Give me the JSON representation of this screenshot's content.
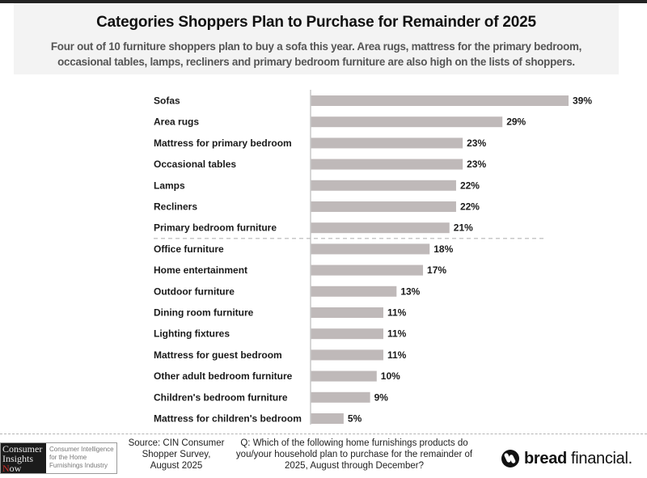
{
  "header": {
    "title": "Categories Shoppers Plan to Purchase for Remainder of 2025",
    "subtitle_line1": "Four out of 10 furniture shoppers plan to buy a sofa this year. Area rugs, mattress for the primary bedroom,",
    "subtitle_line2": "occasional tables, lamps, recliners and primary bedroom furniture are also high on the lists of shoppers."
  },
  "chart_data": {
    "type": "bar",
    "orientation": "horizontal",
    "title": "Categories Shoppers Plan to Purchase for Remainder of 2025",
    "xlabel": "",
    "ylabel": "",
    "unit": "%",
    "xlim": [
      0,
      39
    ],
    "grid": false,
    "legend": "none",
    "bar_color": "#bfb9b9",
    "divider_after_index": 6,
    "categories": [
      "Sofas",
      "Area rugs",
      "Mattress for primary bedroom",
      "Occasional tables",
      "Lamps",
      "Recliners",
      "Primary bedroom furniture",
      "Office furniture",
      "Home entertainment",
      "Outdoor furniture",
      "Dining room furniture",
      "Lighting fixtures",
      "Mattress for guest bedroom",
      "Other adult bedroom furniture",
      "Children's bedroom furniture",
      "Mattress for children's bedroom"
    ],
    "values": [
      39,
      29,
      23,
      23,
      22,
      22,
      21,
      18,
      17,
      13,
      11,
      11,
      11,
      10,
      9,
      5
    ],
    "data_labels": [
      "39%",
      "29%",
      "23%",
      "23%",
      "22%",
      "22%",
      "21%",
      "18%",
      "17%",
      "13%",
      "11%",
      "11%",
      "11%",
      "10%",
      "9%",
      "5%"
    ]
  },
  "footer": {
    "cin_logo": {
      "word1": "Consumer",
      "word2": "Insights",
      "word3_initial": "N",
      "word3_rest": "ow",
      "tagline1": "Consumer Intelligence",
      "tagline2": "for the Home",
      "tagline3": "Furnishings Industry"
    },
    "source_line1": "Source: CIN Consumer",
    "source_line2": "Shopper Survey,",
    "source_line3": "August 2025",
    "question_line1": "Q: Which of the following home furnishings products do",
    "question_line2": "you/your household plan to purchase for the remainder of",
    "question_line3": "2025, August through December?",
    "brand_logo": {
      "bold": "bread",
      "regular": "financial.",
      "icon": "bread-financial-mark-icon"
    }
  }
}
